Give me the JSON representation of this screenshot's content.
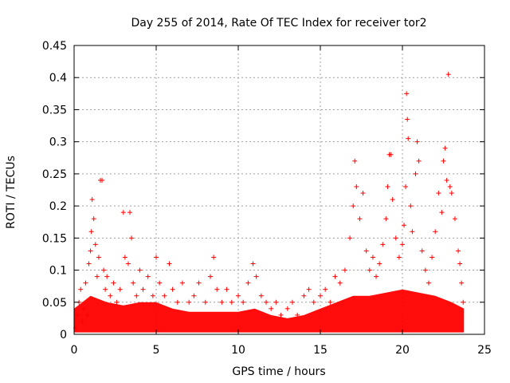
{
  "chart_data": {
    "type": "scatter",
    "title": "Day 255 of 2014, Rate Of TEC Index for receiver tor2",
    "xlabel": "GPS time / hours",
    "ylabel": "ROTI / TECUs",
    "xlim": [
      0,
      25
    ],
    "ylim": [
      0,
      0.45
    ],
    "xticks": [
      "0",
      "5",
      "10",
      "15",
      "20",
      "25"
    ],
    "yticks": [
      "0",
      "0.05",
      "0.1",
      "0.15",
      "0.2",
      "0.25",
      "0.3",
      "0.35",
      "0.4",
      "0.45"
    ],
    "grid": true,
    "marker": "+",
    "color": "#ff0000",
    "series": [
      {
        "points": [
          [
            0.1,
            0.01
          ],
          [
            0.2,
            0.03
          ],
          [
            0.3,
            0.05
          ],
          [
            0.4,
            0.07
          ],
          [
            0.5,
            0.02
          ],
          [
            0.6,
            0.04
          ],
          [
            0.7,
            0.08
          ],
          [
            0.8,
            0.03
          ],
          [
            0.9,
            0.11
          ],
          [
            1.0,
            0.13
          ],
          [
            1.05,
            0.16
          ],
          [
            1.1,
            0.21
          ],
          [
            1.2,
            0.18
          ],
          [
            1.3,
            0.14
          ],
          [
            1.4,
            0.09
          ],
          [
            1.5,
            0.12
          ],
          [
            1.6,
            0.24
          ],
          [
            1.7,
            0.24
          ],
          [
            1.8,
            0.1
          ],
          [
            1.9,
            0.07
          ],
          [
            2.0,
            0.09
          ],
          [
            2.2,
            0.06
          ],
          [
            2.4,
            0.08
          ],
          [
            2.6,
            0.05
          ],
          [
            2.8,
            0.07
          ],
          [
            3.0,
            0.19
          ],
          [
            3.1,
            0.12
          ],
          [
            3.3,
            0.11
          ],
          [
            3.4,
            0.19
          ],
          [
            3.5,
            0.15
          ],
          [
            3.6,
            0.08
          ],
          [
            3.8,
            0.06
          ],
          [
            4.0,
            0.1
          ],
          [
            4.2,
            0.07
          ],
          [
            4.5,
            0.09
          ],
          [
            4.8,
            0.06
          ],
          [
            5.0,
            0.12
          ],
          [
            5.2,
            0.08
          ],
          [
            5.5,
            0.06
          ],
          [
            5.8,
            0.11
          ],
          [
            6.0,
            0.07
          ],
          [
            6.3,
            0.05
          ],
          [
            6.6,
            0.08
          ],
          [
            7.0,
            0.05
          ],
          [
            7.3,
            0.06
          ],
          [
            7.6,
            0.08
          ],
          [
            8.0,
            0.05
          ],
          [
            8.3,
            0.09
          ],
          [
            8.5,
            0.12
          ],
          [
            8.7,
            0.07
          ],
          [
            9.0,
            0.05
          ],
          [
            9.3,
            0.07
          ],
          [
            9.6,
            0.05
          ],
          [
            10.0,
            0.06
          ],
          [
            10.3,
            0.05
          ],
          [
            10.6,
            0.08
          ],
          [
            10.9,
            0.11
          ],
          [
            11.1,
            0.09
          ],
          [
            11.4,
            0.06
          ],
          [
            11.7,
            0.05
          ],
          [
            12.0,
            0.04
          ],
          [
            12.3,
            0.05
          ],
          [
            12.6,
            0.03
          ],
          [
            13.0,
            0.04
          ],
          [
            13.3,
            0.05
          ],
          [
            13.6,
            0.03
          ],
          [
            14.0,
            0.06
          ],
          [
            14.3,
            0.07
          ],
          [
            14.6,
            0.05
          ],
          [
            15.0,
            0.06
          ],
          [
            15.3,
            0.07
          ],
          [
            15.6,
            0.05
          ],
          [
            15.9,
            0.09
          ],
          [
            16.2,
            0.08
          ],
          [
            16.5,
            0.1
          ],
          [
            16.8,
            0.15
          ],
          [
            17.0,
            0.2
          ],
          [
            17.1,
            0.27
          ],
          [
            17.2,
            0.23
          ],
          [
            17.4,
            0.18
          ],
          [
            17.6,
            0.22
          ],
          [
            17.8,
            0.13
          ],
          [
            18.0,
            0.1
          ],
          [
            18.2,
            0.12
          ],
          [
            18.4,
            0.09
          ],
          [
            18.6,
            0.11
          ],
          [
            18.8,
            0.14
          ],
          [
            19.0,
            0.18
          ],
          [
            19.1,
            0.23
          ],
          [
            19.2,
            0.28
          ],
          [
            19.3,
            0.28
          ],
          [
            19.4,
            0.21
          ],
          [
            19.6,
            0.15
          ],
          [
            19.8,
            0.12
          ],
          [
            20.0,
            0.14
          ],
          [
            20.1,
            0.17
          ],
          [
            20.2,
            0.23
          ],
          [
            20.25,
            0.375
          ],
          [
            20.3,
            0.335
          ],
          [
            20.35,
            0.305
          ],
          [
            20.5,
            0.2
          ],
          [
            20.6,
            0.16
          ],
          [
            20.8,
            0.25
          ],
          [
            20.9,
            0.3
          ],
          [
            21.0,
            0.27
          ],
          [
            21.2,
            0.13
          ],
          [
            21.4,
            0.1
          ],
          [
            21.6,
            0.08
          ],
          [
            21.8,
            0.12
          ],
          [
            22.0,
            0.16
          ],
          [
            22.2,
            0.22
          ],
          [
            22.4,
            0.19
          ],
          [
            22.5,
            0.27
          ],
          [
            22.6,
            0.29
          ],
          [
            22.7,
            0.24
          ],
          [
            22.8,
            0.405
          ],
          [
            22.9,
            0.23
          ],
          [
            23.0,
            0.22
          ],
          [
            23.2,
            0.18
          ],
          [
            23.4,
            0.13
          ],
          [
            23.5,
            0.11
          ],
          [
            23.6,
            0.08
          ],
          [
            23.7,
            0.05
          ]
        ]
      }
    ]
  }
}
